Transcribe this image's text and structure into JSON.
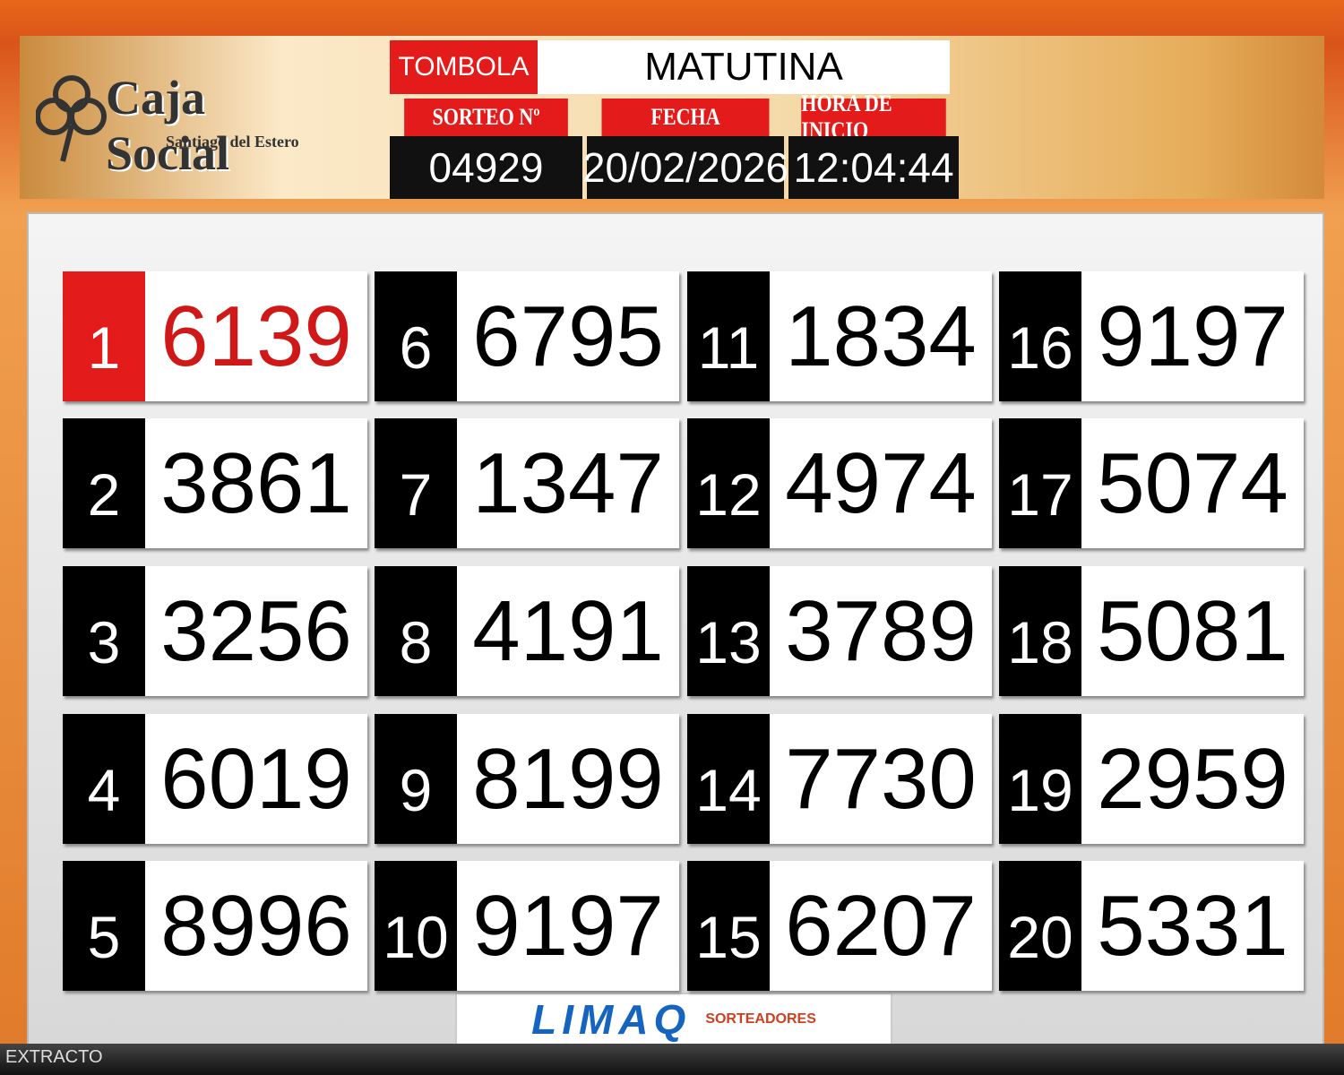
{
  "header": {
    "logo": {
      "name": "Caja Social",
      "subtitle": "Santiago del Estero"
    },
    "game": "TOMBOLA",
    "shift": "MATUTINA",
    "draw": {
      "label": "SORTEO Nº",
      "value": "04929"
    },
    "date": {
      "label": "FECHA",
      "value": "20/02/2026"
    },
    "start_time": {
      "label": "HORA DE INICIO",
      "value": "12:04:44"
    }
  },
  "results": [
    {
      "position": "1",
      "number": "6139"
    },
    {
      "position": "2",
      "number": "3861"
    },
    {
      "position": "3",
      "number": "3256"
    },
    {
      "position": "4",
      "number": "6019"
    },
    {
      "position": "5",
      "number": "8996"
    },
    {
      "position": "6",
      "number": "6795"
    },
    {
      "position": "7",
      "number": "1347"
    },
    {
      "position": "8",
      "number": "4191"
    },
    {
      "position": "9",
      "number": "8199"
    },
    {
      "position": "10",
      "number": "9197"
    },
    {
      "position": "11",
      "number": "1834"
    },
    {
      "position": "12",
      "number": "4974"
    },
    {
      "position": "13",
      "number": "3789"
    },
    {
      "position": "14",
      "number": "7730"
    },
    {
      "position": "15",
      "number": "6207"
    },
    {
      "position": "16",
      "number": "9197"
    },
    {
      "position": "17",
      "number": "5074"
    },
    {
      "position": "18",
      "number": "5081"
    },
    {
      "position": "19",
      "number": "2959"
    },
    {
      "position": "20",
      "number": "5331"
    }
  ],
  "footer": {
    "brand": "LIMAQ",
    "brand_sub": "SORTEADORES",
    "status": "EXTRACTO"
  }
}
